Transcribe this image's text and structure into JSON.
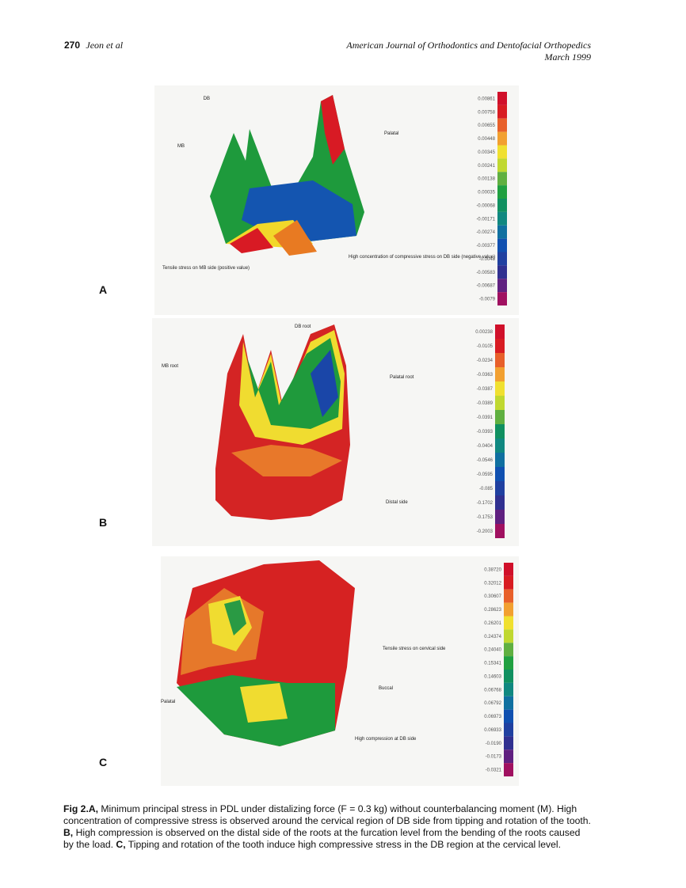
{
  "header": {
    "page_number": "270",
    "authors": "Jeon et al",
    "journal": "American Journal of Orthodontics and Dentofacial Orthopedics",
    "date": "March 1999"
  },
  "figure": {
    "panels": [
      {
        "letter": "A",
        "annotations": [
          "DB",
          "MB",
          "Palatal",
          "Tensile stress on MB side (positive value)",
          "High concentration of compressive stress on DB side (negative value)"
        ],
        "scale": [
          "0.00861",
          "0.00758",
          "0.00655",
          "0.00448",
          "0.00345",
          "0.00241",
          "0.00138",
          "0.00035",
          "-0.00068",
          "-0.00171",
          "-0.00274",
          "-0.00377",
          "-0.0048",
          "-0.00583",
          "-0.00687",
          "-0.0079"
        ]
      },
      {
        "letter": "B",
        "annotations": [
          "DB root",
          "MB root",
          "Palatal root",
          "Distal side"
        ],
        "scale": [
          "0.00238",
          "-0.0105",
          "-0.0234",
          "-0.0363",
          "-0.0387",
          "-0.0389",
          "-0.0391",
          "-0.0393",
          "-0.0404",
          "-0.0546",
          "-0.0595",
          "-0.085",
          "-0.1702",
          "-0.1753",
          "-0.2003"
        ]
      },
      {
        "letter": "C",
        "annotations": [
          "Tensile stress on cervical side",
          "Buccal",
          "Palatal",
          "High compression at DB side"
        ],
        "scale": [
          "0.38720",
          "0.32012",
          "0.30607",
          "0.28623",
          "0.26201",
          "0.24374",
          "0.24040",
          "0.15341",
          "0.14603",
          "0.06768",
          "0.06792",
          "0.06973",
          "0.06933",
          "-0.0190",
          "-0.0173",
          "-0.0321"
        ]
      }
    ],
    "caption": {
      "label": "Fig 2.",
      "text": [
        {
          "bold": "A,",
          "rest": " Minimum principal stress in PDL under distalizing force (F = 0.3 kg) without counterbalancing moment (M). High concentration of compressive stress is observed around the cervical region of DB side from tipping and rotation of the tooth. "
        },
        {
          "bold": "B,",
          "rest": " High compression is observed on the distal side of the roots at the furcation level from the bending of the roots caused by the load. "
        },
        {
          "bold": "C,",
          "rest": " Tipping and rotation of the tooth induce high compressive stress in the DB region at the cervical level."
        }
      ]
    }
  }
}
